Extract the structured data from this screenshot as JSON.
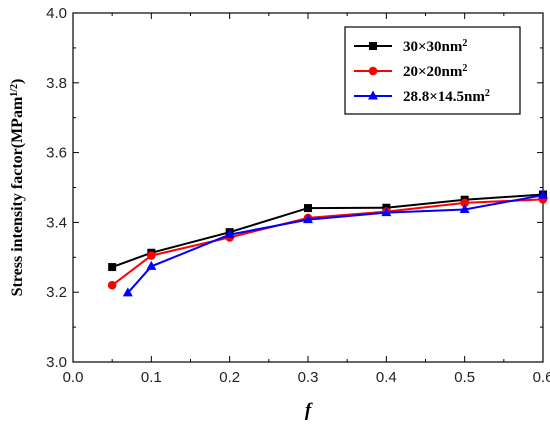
{
  "chart_data": {
    "type": "line",
    "xlabel": "f",
    "ylabel": "Stress intensity factor(MPam",
    "ylabel_sup": "1/2",
    "ylabel_end": ")",
    "xlim": [
      0.0,
      0.6
    ],
    "ylim": [
      3.0,
      4.0
    ],
    "x_ticks": [
      "0.0",
      "0.1",
      "0.2",
      "0.3",
      "0.4",
      "0.5",
      "0.6"
    ],
    "y_ticks": [
      "3.0",
      "3.2",
      "3.4",
      "3.6",
      "3.8",
      "4.0"
    ],
    "legend_position": "top-right",
    "grid": false,
    "series": [
      {
        "name": "30×30nm",
        "name_sup": "2",
        "color": "#000000",
        "marker": "square",
        "x": [
          0.05,
          0.1,
          0.2,
          0.3,
          0.4,
          0.5,
          0.6
        ],
        "y": [
          3.272,
          3.313,
          3.372,
          3.441,
          3.442,
          3.465,
          3.48
        ]
      },
      {
        "name": "20×20nm",
        "name_sup": "2",
        "color": "#ff0000",
        "marker": "circle",
        "x": [
          0.05,
          0.1,
          0.2,
          0.3,
          0.4,
          0.5,
          0.6
        ],
        "y": [
          3.22,
          3.305,
          3.357,
          3.413,
          3.431,
          3.456,
          3.466
        ]
      },
      {
        "name": "28.8×14.5nm",
        "name_sup": "2",
        "color": "#0000ff",
        "marker": "triangle",
        "x": [
          0.07,
          0.1,
          0.2,
          0.3,
          0.4,
          0.5,
          0.6
        ],
        "y": [
          3.198,
          3.274,
          3.365,
          3.408,
          3.428,
          3.437,
          3.478
        ]
      }
    ]
  }
}
